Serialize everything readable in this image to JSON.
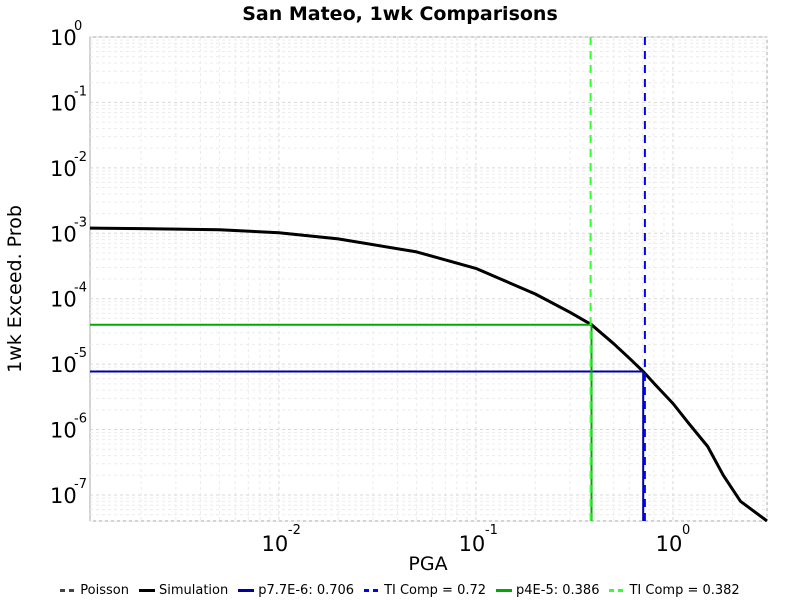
{
  "chart_data": {
    "type": "line",
    "title": "San Mateo, 1wk Comparisons",
    "xlabel": "PGA",
    "ylabel": "1wk Exceed. Prob",
    "x_scale": "log",
    "y_scale": "log",
    "xlim": [
      0.0011,
      3.0
    ],
    "ylim": [
      4e-08,
      1.0
    ],
    "grid": true,
    "legend_position": "bottom",
    "x_ticks": [
      {
        "base": "10",
        "exp": "-2",
        "value": 0.01
      },
      {
        "base": "10",
        "exp": "-1",
        "value": 0.1
      },
      {
        "base": "10",
        "exp": "0",
        "value": 1
      }
    ],
    "y_ticks": [
      {
        "base": "10",
        "exp": "0",
        "value": 1
      },
      {
        "base": "10",
        "exp": "-1",
        "value": 0.1
      },
      {
        "base": "10",
        "exp": "-2",
        "value": 0.01
      },
      {
        "base": "10",
        "exp": "-3",
        "value": 0.001
      },
      {
        "base": "10",
        "exp": "-4",
        "value": 0.0001
      },
      {
        "base": "10",
        "exp": "-5",
        "value": 1e-05
      },
      {
        "base": "10",
        "exp": "-6",
        "value": 1e-06
      },
      {
        "base": "10",
        "exp": "-7",
        "value": 1e-07
      }
    ],
    "series": [
      {
        "name": "Poisson",
        "color": "#444444",
        "style": "dashed",
        "x": [
          0.0011,
          0.002,
          0.005,
          0.01,
          0.02,
          0.05,
          0.1,
          0.2,
          0.3,
          0.386,
          0.5,
          0.6,
          0.706,
          0.8,
          1.0,
          1.2,
          1.5,
          1.8,
          2.2,
          3.0
        ],
        "y": [
          0.0012,
          0.00118,
          0.00113,
          0.00102,
          0.00082,
          0.00052,
          0.00029,
          0.000118,
          6.2e-05,
          4e-05,
          2.05e-05,
          1.23e-05,
          7.7e-06,
          5.1e-06,
          2.5e-06,
          1.25e-06,
          5.5e-07,
          2e-07,
          8e-08,
          4e-08
        ]
      },
      {
        "name": "Simulation",
        "color": "#000000",
        "style": "solid",
        "x": [
          0.0011,
          0.002,
          0.005,
          0.01,
          0.02,
          0.05,
          0.1,
          0.2,
          0.3,
          0.386,
          0.5,
          0.6,
          0.706,
          0.8,
          1.0,
          1.2,
          1.5,
          1.8,
          2.2,
          3.0
        ],
        "y": [
          0.0012,
          0.00118,
          0.00113,
          0.00102,
          0.00082,
          0.00052,
          0.00029,
          0.000118,
          6.2e-05,
          4e-05,
          2.05e-05,
          1.23e-05,
          7.7e-06,
          5.1e-06,
          2.5e-06,
          1.25e-06,
          5.5e-07,
          2e-07,
          8e-08,
          4e-08
        ]
      },
      {
        "name": "p7.7E-6: 0.706",
        "color": "#0000aa",
        "style": "solid",
        "x": [
          0.0011,
          0.706,
          0.706
        ],
        "y": [
          7.7e-06,
          7.7e-06,
          4e-08
        ]
      },
      {
        "name": "TI Comp = 0.72",
        "color": "#0000ff",
        "style": "dashed",
        "x": [
          0.72,
          0.72
        ],
        "y": [
          1.0,
          4e-08
        ]
      },
      {
        "name": "p4E-5: 0.386",
        "color": "#00aa00",
        "style": "solid",
        "x": [
          0.0011,
          0.386,
          0.386
        ],
        "y": [
          4e-05,
          4e-05,
          4e-08
        ]
      },
      {
        "name": "TI Comp = 0.382",
        "color": "#33ff33",
        "style": "dashed",
        "x": [
          0.382,
          0.382
        ],
        "y": [
          1.0,
          4e-08
        ]
      }
    ]
  }
}
